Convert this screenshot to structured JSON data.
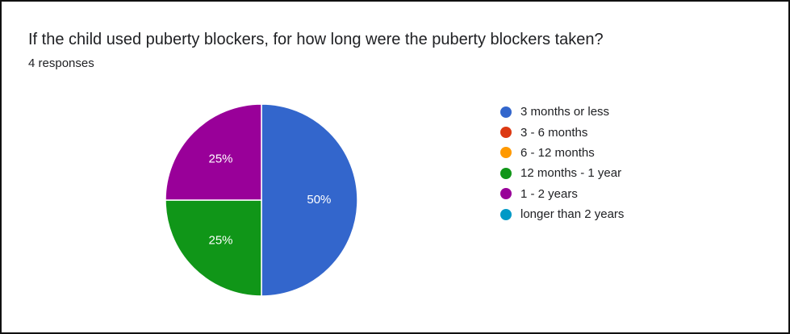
{
  "title": "If the child used puberty blockers, for how long were the puberty blockers taken?",
  "subtitle": "4 responses",
  "chart_data": {
    "type": "pie",
    "categories": [
      "3 months or less",
      "3 - 6 months",
      "6 - 12 months",
      "12 months - 1 year",
      "1 - 2 years",
      "longer than 2 years"
    ],
    "values": [
      50,
      0,
      0,
      25,
      25,
      0
    ],
    "labels": [
      "50%",
      "",
      "",
      "25%",
      "25%",
      ""
    ],
    "colors": [
      "#3366cc",
      "#dc3912",
      "#ff9900",
      "#109618",
      "#990099",
      "#0099c6"
    ],
    "legend_position": "right"
  }
}
